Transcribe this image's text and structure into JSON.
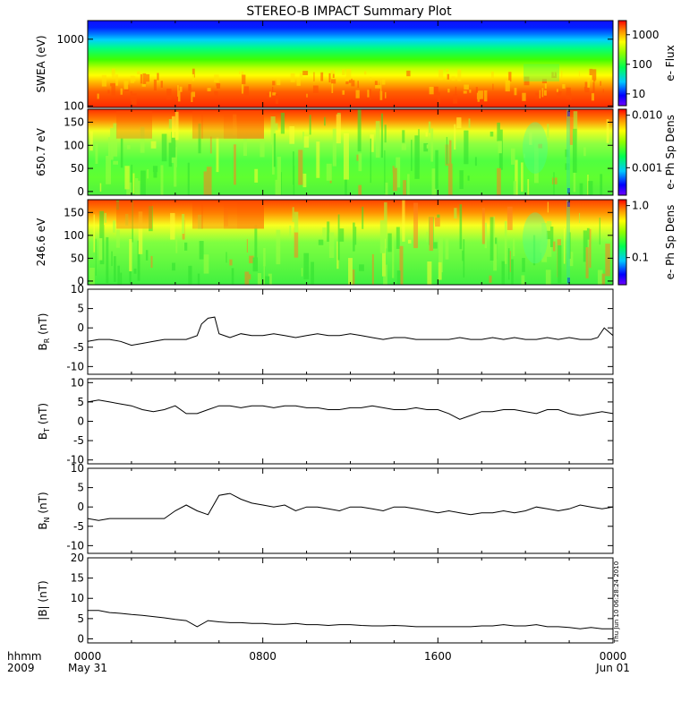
{
  "title": "STEREO-B IMPACT Summary Plot",
  "timestamp": "Thu Jun 10 06:28:24 2010",
  "time_axis": {
    "row1_ticks": [
      "0000",
      "0800",
      "1600",
      "0000"
    ],
    "row2_ticks": [
      "May 31",
      "Jun 01"
    ],
    "corner_row1": "hhmm",
    "corner_row2": "2009"
  },
  "chart_data": [
    {
      "type": "heatmap",
      "name": "swea",
      "ylabel": "SWEA (eV)",
      "ytick_labels": [
        "1000",
        "100"
      ],
      "yticks": [
        1000,
        100
      ],
      "ylim": [
        95,
        1900
      ],
      "yscale": "log",
      "colorbar_label": "e- Flux",
      "colorbar_tick_labels": [
        "1000",
        "100",
        "10"
      ],
      "colorbar_ticks": [
        1000,
        100,
        10
      ],
      "colorbar_range": [
        4,
        3000
      ],
      "colorbar_scale": "log"
    },
    {
      "type": "heatmap",
      "name": "pad650",
      "ylabel": "650.7 eV",
      "ytick_labels": [
        "150",
        "100",
        "50",
        "0"
      ],
      "yticks": [
        150,
        100,
        50,
        0
      ],
      "ylim": [
        -8,
        178
      ],
      "colorbar_label": "e- Ph Sp Dens",
      "colorbar_tick_labels": [
        "0.010",
        "0.001"
      ],
      "colorbar_ticks": [
        0.01,
        0.001
      ],
      "colorbar_range": [
        0.0003,
        0.013
      ],
      "colorbar_scale": "log"
    },
    {
      "type": "heatmap",
      "name": "pad246",
      "ylabel": "246.6 eV",
      "ytick_labels": [
        "150",
        "100",
        "50",
        "0"
      ],
      "yticks": [
        150,
        100,
        50,
        0
      ],
      "ylim": [
        -8,
        178
      ],
      "colorbar_label": "e- Ph Sp Dens",
      "colorbar_tick_labels": [
        "1.0",
        "0.1"
      ],
      "colorbar_ticks": [
        1.0,
        0.1
      ],
      "colorbar_range": [
        0.03,
        1.3
      ],
      "colorbar_scale": "log"
    },
    {
      "type": "line",
      "name": "br",
      "ylabel_main": "B",
      "ylabel_sub": "R",
      "ylabel_unit": "(nT)",
      "ylim": [
        -12,
        10
      ],
      "ytick_labels": [
        "10",
        "5",
        "0",
        "-5",
        "-10"
      ],
      "yticks": [
        10,
        5,
        0,
        -5,
        -10
      ],
      "x_hours": [
        0,
        0.5,
        1,
        1.5,
        2,
        2.5,
        3,
        3.5,
        4,
        4.5,
        5,
        5.2,
        5.5,
        5.8,
        6,
        6.5,
        7,
        7.5,
        8,
        8.5,
        9,
        9.5,
        10,
        10.5,
        11,
        11.5,
        12,
        12.5,
        13,
        13.5,
        14,
        14.5,
        15,
        15.5,
        16,
        16.5,
        17,
        17.5,
        18,
        18.5,
        19,
        19.5,
        20,
        20.5,
        21,
        21.5,
        22,
        22.5,
        23,
        23.3,
        23.6,
        24
      ],
      "y": [
        -3.5,
        -3,
        -3,
        -3.5,
        -4.5,
        -4,
        -3.5,
        -3,
        -3,
        -3,
        -2,
        1,
        2.5,
        2.8,
        -1.5,
        -2.5,
        -1.5,
        -2,
        -2,
        -1.5,
        -2,
        -2.5,
        -2,
        -1.5,
        -2,
        -2,
        -1.5,
        -2,
        -2.5,
        -3,
        -2.5,
        -2.5,
        -3,
        -3,
        -3,
        -3,
        -2.5,
        -3,
        -3,
        -2.5,
        -3,
        -2.5,
        -3,
        -3,
        -2.5,
        -3,
        -2.5,
        -3,
        -3,
        -2.5,
        0,
        -2
      ]
    },
    {
      "type": "line",
      "name": "bt",
      "ylabel_main": "B",
      "ylabel_sub": "T",
      "ylabel_unit": "(nT)",
      "ylim": [
        -11,
        11
      ],
      "ytick_labels": [
        "10",
        "5",
        "0",
        "-5",
        "-10"
      ],
      "yticks": [
        10,
        5,
        0,
        -5,
        -10
      ],
      "x_hours": [
        0,
        0.5,
        1,
        1.5,
        2,
        2.5,
        3,
        3.5,
        4,
        4.5,
        5,
        5.5,
        6,
        6.5,
        7,
        7.5,
        8,
        8.5,
        9,
        9.5,
        10,
        10.5,
        11,
        11.5,
        12,
        12.5,
        13,
        13.5,
        14,
        14.5,
        15,
        15.5,
        16,
        16.5,
        17,
        17.5,
        18,
        18.5,
        19,
        19.5,
        20,
        20.5,
        21,
        21.5,
        22,
        22.5,
        23,
        23.5,
        24
      ],
      "y": [
        5,
        5.5,
        5,
        4.5,
        4,
        3,
        2.5,
        3,
        4,
        2,
        2,
        3,
        4,
        4,
        3.5,
        4,
        4,
        3.5,
        4,
        4,
        3.5,
        3.5,
        3,
        3,
        3.5,
        3.5,
        4,
        3.5,
        3,
        3,
        3.5,
        3,
        3,
        2,
        0.5,
        1.5,
        2.5,
        2.5,
        3,
        3,
        2.5,
        2,
        3,
        3,
        2,
        1.5,
        2,
        2.5,
        2
      ]
    },
    {
      "type": "line",
      "name": "bn",
      "ylabel_main": "B",
      "ylabel_sub": "N",
      "ylabel_unit": "(nT)",
      "ylim": [
        -12,
        10
      ],
      "ytick_labels": [
        "10",
        "5",
        "0",
        "-5",
        "-10"
      ],
      "yticks": [
        10,
        5,
        0,
        -5,
        -10
      ],
      "x_hours": [
        0,
        0.5,
        1,
        1.5,
        2,
        2.5,
        3,
        3.5,
        4,
        4.5,
        5,
        5.5,
        6,
        6.5,
        7,
        7.5,
        8,
        8.5,
        9,
        9.5,
        10,
        10.5,
        11,
        11.5,
        12,
        12.5,
        13,
        13.5,
        14,
        14.5,
        15,
        15.5,
        16,
        16.5,
        17,
        17.5,
        18,
        18.5,
        19,
        19.5,
        20,
        20.5,
        21,
        21.5,
        22,
        22.5,
        23,
        23.5,
        24
      ],
      "y": [
        -3,
        -3.5,
        -3,
        -3,
        -3,
        -3,
        -3,
        -3,
        -1,
        0.5,
        -1,
        -2,
        3,
        3.5,
        2,
        1,
        0.5,
        0,
        0.5,
        -1,
        0,
        0,
        -0.5,
        -1,
        0,
        0,
        -0.5,
        -1,
        0,
        0,
        -0.5,
        -1,
        -1.5,
        -1,
        -1.5,
        -2,
        -1.5,
        -1.5,
        -1,
        -1.5,
        -1,
        0,
        -0.5,
        -1,
        -0.5,
        0.5,
        0,
        -0.5,
        0
      ]
    },
    {
      "type": "line",
      "name": "bmag",
      "ylabel_main": "|B|",
      "ylabel_sub": "",
      "ylabel_unit": "(nT)",
      "ylim": [
        -1,
        20
      ],
      "ytick_labels": [
        "20",
        "15",
        "10",
        "5",
        "0"
      ],
      "yticks": [
        20,
        15,
        10,
        5,
        0
      ],
      "x_hours": [
        0,
        0.5,
        1,
        1.5,
        2,
        2.5,
        3,
        3.5,
        4,
        4.5,
        5,
        5.5,
        6,
        6.5,
        7,
        7.5,
        8,
        8.5,
        9,
        9.5,
        10,
        10.5,
        11,
        11.5,
        12,
        12.5,
        13,
        13.5,
        14,
        14.5,
        15,
        15.5,
        16,
        16.5,
        17,
        17.5,
        18,
        18.5,
        19,
        19.5,
        20,
        20.5,
        21,
        21.5,
        22,
        22.5,
        23,
        23.5,
        24
      ],
      "y": [
        7,
        7,
        6.5,
        6.3,
        6,
        5.8,
        5.5,
        5.2,
        4.8,
        4.5,
        3,
        4.5,
        4.2,
        4,
        4,
        3.8,
        3.8,
        3.6,
        3.6,
        3.8,
        3.5,
        3.5,
        3.3,
        3.5,
        3.5,
        3.3,
        3.2,
        3.2,
        3.3,
        3.2,
        3,
        3,
        3,
        3,
        3,
        3,
        3.2,
        3.2,
        3.5,
        3.2,
        3.2,
        3.5,
        3,
        3,
        2.8,
        2.5,
        2.8,
        2.5,
        2.5
      ]
    }
  ]
}
